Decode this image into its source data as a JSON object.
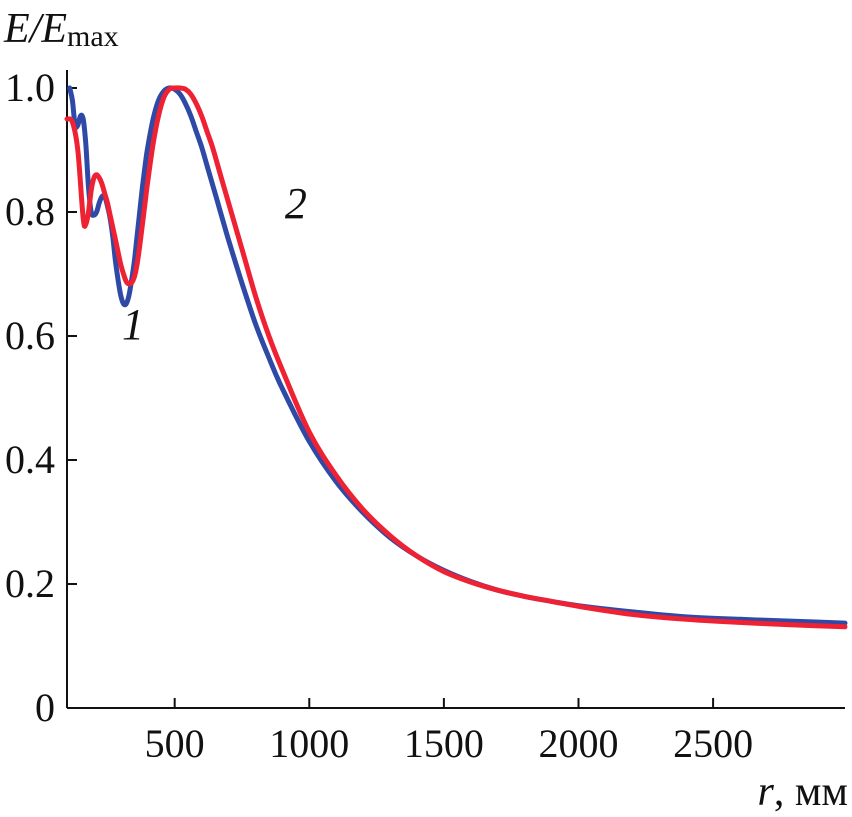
{
  "chart_data": {
    "type": "line",
    "title": "",
    "ylabel": {
      "main": "E/E",
      "subscript": "max"
    },
    "xlabel": {
      "variable": "r",
      "unit": ", мм"
    },
    "xlim": [
      100,
      2990
    ],
    "ylim": [
      0,
      1.0
    ],
    "x_ticks": [
      500,
      1000,
      1500,
      2000,
      2500
    ],
    "x_tick_labels": [
      "500",
      "1000",
      "1500",
      "2000",
      "2500"
    ],
    "y_ticks": [
      0,
      0.2,
      0.4,
      0.6,
      0.8,
      1.0
    ],
    "y_tick_labels": [
      "0",
      "0.2",
      "0.4",
      "0.6",
      "0.8",
      "1.0"
    ],
    "grid": false,
    "legend": "none",
    "series": [
      {
        "name": "1",
        "color": "#2f4aa6",
        "x": [
          110,
          120,
          130,
          140,
          150,
          160,
          170,
          180,
          190,
          200,
          210,
          220,
          230,
          240,
          250,
          260,
          270,
          280,
          290,
          300,
          310,
          320,
          330,
          340,
          350,
          360,
          370,
          380,
          390,
          400,
          420,
          440,
          460,
          480,
          500,
          520,
          540,
          560,
          580,
          600,
          620,
          640,
          660,
          680,
          700,
          750,
          800,
          850,
          900,
          1000,
          1100,
          1200,
          1300,
          1400,
          1500,
          1600,
          1700,
          1800,
          1900,
          2000,
          2200,
          2400,
          2600,
          2800,
          2990
        ],
        "y": [
          1.0,
          0.98,
          0.94,
          0.94,
          0.955,
          0.95,
          0.91,
          0.84,
          0.8,
          0.795,
          0.8,
          0.815,
          0.825,
          0.825,
          0.81,
          0.79,
          0.76,
          0.72,
          0.69,
          0.665,
          0.652,
          0.652,
          0.665,
          0.69,
          0.72,
          0.76,
          0.8,
          0.84,
          0.875,
          0.905,
          0.95,
          0.98,
          0.995,
          1.0,
          0.998,
          0.99,
          0.975,
          0.955,
          0.93,
          0.905,
          0.875,
          0.845,
          0.815,
          0.785,
          0.755,
          0.685,
          0.62,
          0.565,
          0.515,
          0.43,
          0.365,
          0.315,
          0.275,
          0.245,
          0.222,
          0.204,
          0.19,
          0.18,
          0.172,
          0.165,
          0.155,
          0.147,
          0.143,
          0.14,
          0.137
        ]
      },
      {
        "name": "2",
        "color": "#ee2233",
        "x": [
          100,
          120,
          140,
          160,
          170,
          180,
          190,
          200,
          210,
          220,
          230,
          240,
          250,
          260,
          270,
          280,
          290,
          300,
          310,
          320,
          330,
          340,
          350,
          360,
          370,
          380,
          390,
          400,
          420,
          440,
          460,
          480,
          500,
          520,
          540,
          560,
          580,
          600,
          620,
          640,
          660,
          680,
          700,
          750,
          800,
          850,
          900,
          1000,
          1100,
          1200,
          1300,
          1400,
          1500,
          1600,
          1700,
          1800,
          1900,
          2000,
          2200,
          2400,
          2600,
          2800,
          2990
        ],
        "y": [
          0.95,
          0.945,
          0.9,
          0.79,
          0.78,
          0.8,
          0.835,
          0.855,
          0.86,
          0.855,
          0.845,
          0.83,
          0.815,
          0.795,
          0.775,
          0.755,
          0.735,
          0.715,
          0.7,
          0.688,
          0.684,
          0.686,
          0.695,
          0.715,
          0.745,
          0.78,
          0.815,
          0.85,
          0.91,
          0.955,
          0.985,
          0.998,
          1.0,
          1.0,
          0.998,
          0.99,
          0.975,
          0.955,
          0.93,
          0.905,
          0.875,
          0.845,
          0.815,
          0.74,
          0.665,
          0.6,
          0.545,
          0.445,
          0.375,
          0.32,
          0.278,
          0.245,
          0.22,
          0.203,
          0.19,
          0.18,
          0.172,
          0.164,
          0.151,
          0.143,
          0.138,
          0.134,
          0.131
        ]
      }
    ],
    "annotations": [
      {
        "text": "1",
        "x": 345,
        "y": 0.595
      },
      {
        "text": "2",
        "x": 950,
        "y": 0.79
      }
    ]
  }
}
